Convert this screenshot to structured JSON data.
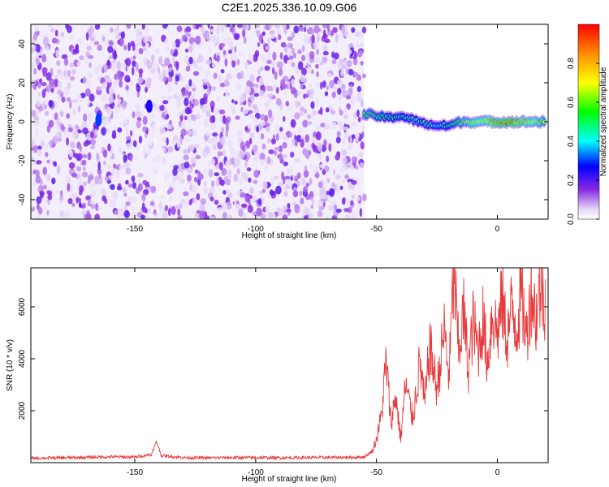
{
  "figure": {
    "title": "C2E1.2025.336.10.09.G06"
  },
  "chart_data": [
    {
      "type": "heatmap",
      "title": "C2E1.2025.336.10.09.G06",
      "xlabel": "Height of straight line (km)",
      "ylabel": "Frequency (Hz)",
      "xlim": [
        -193,
        21
      ],
      "ylim": [
        -50,
        50
      ],
      "x_ticks": [
        -150,
        -100,
        -50,
        0
      ],
      "x_tick_labels": [
        "-150",
        "-100",
        "-50",
        "0"
      ],
      "y_ticks": [
        -40,
        -20,
        0,
        20,
        40
      ],
      "y_tick_labels": [
        "-40",
        "-20",
        "0",
        "20",
        "40"
      ],
      "colorbar": {
        "label": "Normalized spectral amplitude",
        "range": [
          0,
          1
        ],
        "ticks": [
          0.0,
          0.2,
          0.4,
          0.6,
          0.8
        ],
        "tick_labels": [
          "0.0",
          "0.2",
          "0.4",
          "0.6",
          "0.8"
        ],
        "colormap": [
          "#ffffff",
          "#e6d9f7",
          "#8a2be2",
          "#0000ff",
          "#00ffff",
          "#00ff00",
          "#ffff00",
          "#ff8c00",
          "#ff0000"
        ]
      },
      "signal_trace": {
        "description_none": "",
        "x": [
          -55,
          -50,
          -45,
          -40,
          -35,
          -30,
          -25,
          -20,
          -15,
          -10,
          -5,
          0,
          5,
          10,
          15,
          20
        ],
        "freq": [
          4,
          3,
          2,
          3,
          1,
          -1,
          -2,
          -2,
          0,
          0,
          0,
          0,
          0,
          0,
          0,
          0
        ],
        "amplitude": [
          0.6,
          0.55,
          0.5,
          0.5,
          0.45,
          0.45,
          0.45,
          0.5,
          0.6,
          0.7,
          0.75,
          0.85,
          0.9,
          0.8,
          0.75,
          0.6
        ]
      },
      "hotspots": [
        {
          "x": -165,
          "freq": 1,
          "amplitude": 0.3
        },
        {
          "x": -144,
          "freq": 8,
          "amplitude": 0.25
        }
      ],
      "noise_region_x": [
        -193,
        -55
      ],
      "noise_gap_x": [
        -145,
        -138
      ]
    },
    {
      "type": "line",
      "xlabel": "Height of straight line (km)",
      "ylabel": "SNR (10 * v/v)",
      "xlim": [
        -193,
        21
      ],
      "ylim": [
        0,
        7500
      ],
      "x_ticks": [
        -150,
        -100,
        -50,
        0
      ],
      "x_tick_labels": [
        "-150",
        "-100",
        "-50",
        "0"
      ],
      "y_ticks": [
        2000,
        4000,
        6000
      ],
      "y_tick_labels": [
        "2000",
        "4000",
        "6000"
      ],
      "color": "#e8393b",
      "x": [
        -193,
        -180,
        -170,
        -160,
        -150,
        -143,
        -141,
        -139,
        -130,
        -120,
        -110,
        -100,
        -90,
        -80,
        -70,
        -60,
        -55,
        -52,
        -50,
        -48,
        -46,
        -44,
        -42,
        -40,
        -38,
        -35,
        -32,
        -30,
        -28,
        -25,
        -22,
        -20,
        -18,
        -16,
        -14,
        -12,
        -10,
        -8,
        -6,
        -4,
        -2,
        0,
        2,
        4,
        6,
        8,
        10,
        12,
        14,
        16,
        18,
        20
      ],
      "y": [
        150,
        160,
        180,
        200,
        190,
        300,
        800,
        250,
        170,
        160,
        170,
        170,
        165,
        170,
        175,
        180,
        200,
        400,
        900,
        1800,
        3900,
        1500,
        2600,
        900,
        3000,
        1700,
        3900,
        2200,
        4500,
        2800,
        5100,
        3300,
        7400,
        4200,
        5800,
        3600,
        5400,
        4300,
        5500,
        3800,
        5900,
        4900,
        6300,
        4700,
        6000,
        5200,
        6500,
        4800,
        6700,
        5600,
        6900,
        6300
      ]
    }
  ]
}
